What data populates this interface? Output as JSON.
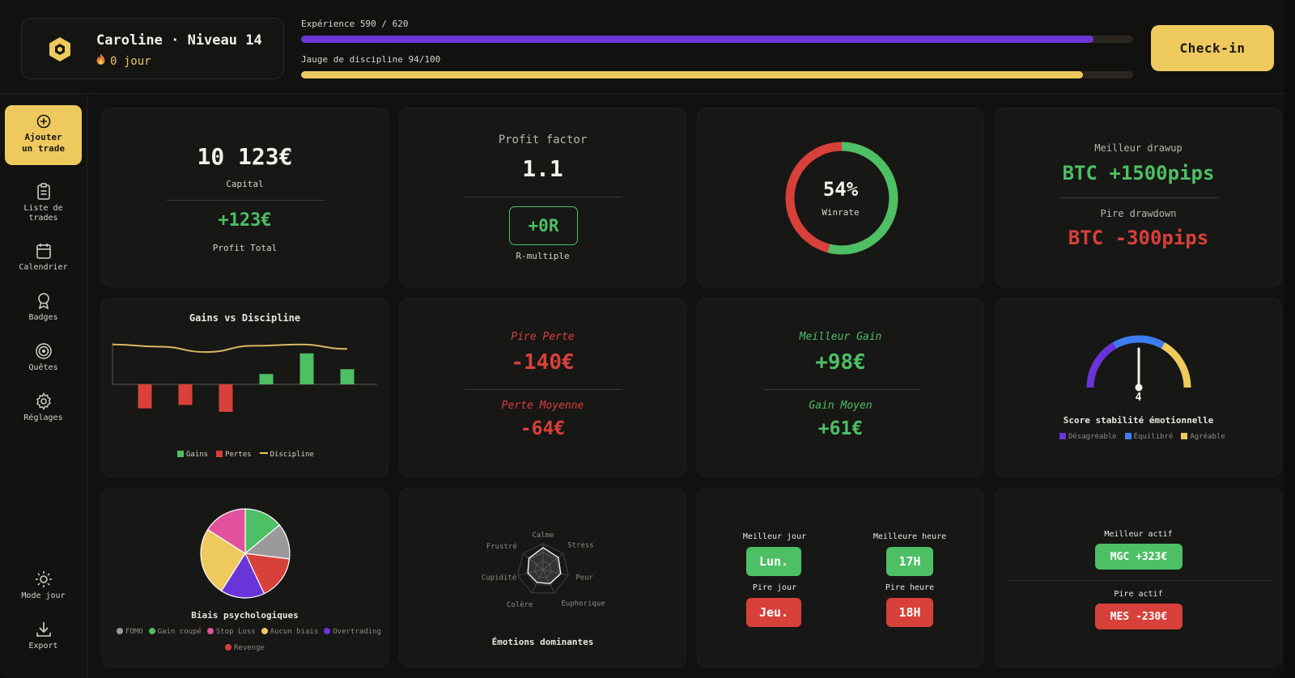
{
  "user": {
    "name_line": "Caroline · Niveau 14",
    "streak": "0 jour"
  },
  "progress": {
    "experience_label": "Expérience 590 / 620",
    "experience_fraction": 0.952,
    "discipline_label": "Jauge de discipline 94/100",
    "discipline_fraction": 0.94
  },
  "checkin_label": "Check-in",
  "sidebar": {
    "items": [
      {
        "label": "Ajouter\nun trade",
        "icon": "plus-circle-icon"
      },
      {
        "label": "Liste de\ntrades",
        "icon": "clipboard-icon"
      },
      {
        "label": "Calendrier",
        "icon": "calendar-icon"
      },
      {
        "label": "Badges",
        "icon": "badge-icon"
      },
      {
        "label": "Quêtes",
        "icon": "target-icon"
      },
      {
        "label": "Réglages",
        "icon": "gear-icon"
      },
      {
        "label": "Mode jour",
        "icon": "sun-icon"
      },
      {
        "label": "Export",
        "icon": "download-icon"
      }
    ]
  },
  "capital": {
    "value": "10 123€",
    "label": "Capital",
    "profit": "+123€",
    "profit_label": "Profit Total"
  },
  "profit_factor": {
    "title": "Profit factor",
    "value": "1.1",
    "r_value": "+0R",
    "r_label": "R-multiple"
  },
  "winrate": {
    "value": "54%",
    "label": "Winrate",
    "fraction": 0.54
  },
  "drawup": {
    "best_label": "Meilleur drawup",
    "best_value": "BTC +1500pips",
    "worst_label": "Pire drawdown",
    "worst_value": "BTC -300pips"
  },
  "gains_chart": {
    "title": "Gains vs Discipline",
    "legend": [
      "Gains",
      "Pertes",
      "Discipline"
    ]
  },
  "chart_data": {
    "type": "bar",
    "title": "Gains vs Discipline",
    "series": [
      {
        "name": "Gains",
        "values": [
          0,
          0,
          0,
          15,
          45,
          22
        ]
      },
      {
        "name": "Pertes",
        "values": [
          -35,
          -30,
          -40,
          0,
          0,
          0
        ]
      },
      {
        "name": "Discipline",
        "type": "line",
        "values": [
          95,
          90,
          78,
          92,
          95,
          85
        ]
      }
    ]
  },
  "worst_loss": {
    "label": "Pire Perte",
    "value": "-140€",
    "avg_label": "Perte Moyenne",
    "avg_value": "-64€"
  },
  "best_gain": {
    "label": "Meilleur Gain",
    "value": "+98€",
    "avg_label": "Gain Moyen",
    "avg_value": "+61€"
  },
  "stability": {
    "value": "4",
    "fraction": 0.5,
    "label": "Score stabilité émotionnelle",
    "legend": [
      "Désagréable",
      "Équilibré",
      "Agréable"
    ],
    "colors": [
      "#6a35d8",
      "#3e7df0",
      "#eeca5e"
    ]
  },
  "biases": {
    "label": "Biais psychologiques",
    "legend": [
      "FOMO",
      "Gain coupé",
      "Stop Loss",
      "Aucun biais",
      "Overtrading",
      "Revenge"
    ],
    "colors": [
      "#9a9a9a",
      "#4dbf64",
      "#e0529c",
      "#eeca5e",
      "#6a35d8",
      "#d8403a"
    ],
    "slices": [
      {
        "name": "Gain coupé",
        "value": 14
      },
      {
        "name": "FOMO",
        "value": 13
      },
      {
        "name": "Revenge",
        "value": 16
      },
      {
        "name": "Overtrading",
        "value": 16
      },
      {
        "name": "Aucun biais",
        "value": 25
      },
      {
        "name": "Stop Loss",
        "value": 16
      }
    ]
  },
  "emotions": {
    "label": "Émotions dominantes",
    "axes": [
      "Calme",
      "Stress",
      "Peur",
      "Euphorique",
      "Colère",
      "Cupidité",
      "Frustré"
    ]
  },
  "days": {
    "best_day_label": "Meilleur jour",
    "best_day": "Lun.",
    "best_hour_label": "Meilleure heure",
    "best_hour": "17H",
    "worst_day_label": "Pire jour",
    "worst_day": "Jeu.",
    "worst_hour_label": "Pire heure",
    "worst_hour": "18H"
  },
  "assets": {
    "best_label": "Meilleur actif",
    "best_value": "MGC +323€",
    "worst_label": "Pire actif",
    "worst_value": "MES -230€"
  },
  "colors": {
    "accent": "#eeca5e",
    "purple": "#6a35d8",
    "green": "#4dbf64",
    "red": "#d8403a",
    "card": "#171715"
  }
}
